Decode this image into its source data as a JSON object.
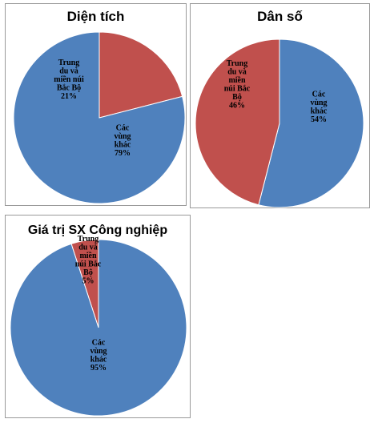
{
  "chart_data": [
    {
      "type": "pie",
      "title": "Diện tích",
      "slices": [
        {
          "label": [
            "Trung",
            "du và",
            "miền núi",
            "Bắc Bộ"
          ],
          "value": 21,
          "value_label": "21%",
          "color": "#c0504d"
        },
        {
          "label": [
            "Các",
            "vùng",
            "khác"
          ],
          "value": 79,
          "value_label": "79%",
          "color": "#4f81bd"
        }
      ]
    },
    {
      "type": "pie",
      "title": "Dân số",
      "slices": [
        {
          "label": [
            "Các",
            "vùng",
            "khác"
          ],
          "value": 54,
          "value_label": "54%",
          "color": "#4f81bd"
        },
        {
          "label": [
            "Trung",
            "du và",
            "miền",
            "núi Bắc",
            "Bộ"
          ],
          "value": 46,
          "value_label": "46%",
          "color": "#c0504d"
        }
      ]
    },
    {
      "type": "pie",
      "title": "Giá trị SX Công nghiệp",
      "slices": [
        {
          "label": [
            "Trung",
            "du và",
            "miền",
            "núi Bắc",
            "Bộ"
          ],
          "value": 5,
          "value_label": "5%",
          "color": "#c0504d"
        },
        {
          "label": [
            "Các",
            "vùng",
            "khác"
          ],
          "value": 95,
          "value_label": "95%",
          "color": "#4f81bd"
        }
      ]
    }
  ]
}
